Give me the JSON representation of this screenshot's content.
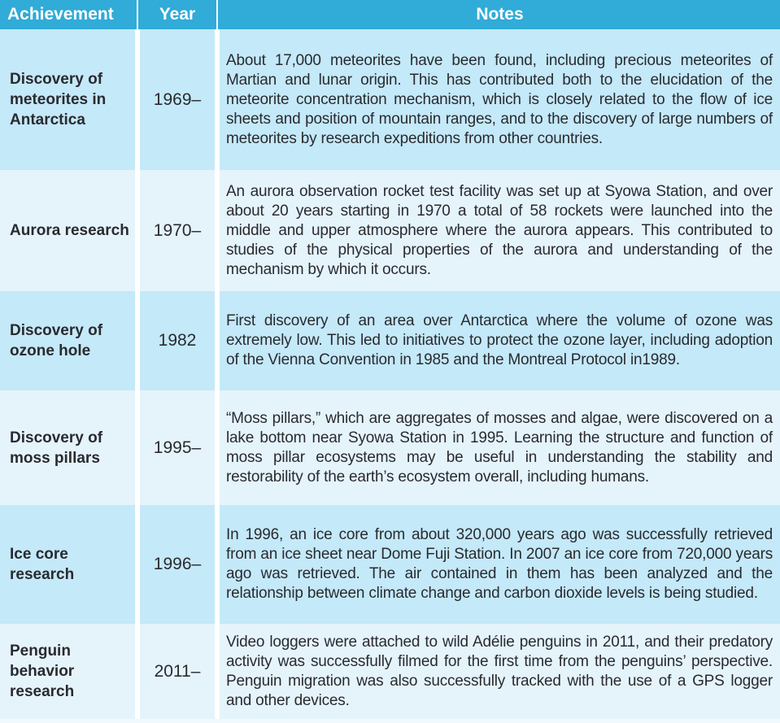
{
  "theme": {
    "header_bg": "#31abd7",
    "header_text": "#ffffff",
    "row_dark": "#c4e9f8",
    "row_light": "#e5f4fb",
    "separator": "#ffffff",
    "text": "#2a2a31"
  },
  "table": {
    "columns": [
      "Achievement",
      "Year",
      "Notes"
    ],
    "rows": [
      {
        "achievement": "Discovery of meteorites in Antarctica",
        "year": "1969–",
        "notes": "About 17,000 meteorites have been found, including precious meteorites of Martian and lunar origin. This has contributed both to the elucidation of the meteorite concentration mechanism, which is closely related to the flow of ice sheets and position of mountain ranges, and to the discovery of large numbers of meteorites by research expeditions from other countries."
      },
      {
        "achievement": "Aurora research",
        "year": "1970–",
        "notes": "An aurora observation rocket test facility was set up at Syowa Station, and over about 20 years starting in 1970 a total of 58 rockets were launched into the middle and upper atmosphere where the aurora appears. This contributed to studies of the physical properties of the aurora and understanding of the mechanism by which it occurs."
      },
      {
        "achievement": "Discovery of ozone hole",
        "year": "1982",
        "notes": "First discovery of an area over Antarctica where the volume of ozone was extremely low. This led to initiatives to protect the ozone layer, including adoption of the Vienna Convention in 1985 and the Montreal Protocol in1989."
      },
      {
        "achievement": "Discovery of moss pillars",
        "year": "1995–",
        "notes": "“Moss pillars,” which are aggregates of mosses and algae, were discovered on a lake bottom near Syowa Station in 1995. Learning the structure and function of moss pillar ecosystems may be useful in understanding the stability and restorability of the earth’s ecosystem overall, including humans."
      },
      {
        "achievement": "Ice core research",
        "year": "1996–",
        "notes": "In 1996, an ice core from about 320,000 years ago was successfully retrieved from an ice sheet near Dome Fuji Station. In 2007 an ice core from 720,000 years ago was retrieved. The air contained in them has been analyzed and the relationship between climate change and carbon dioxide levels is being studied."
      },
      {
        "achievement": "Penguin behavior research",
        "year": "2011–",
        "notes": "Video loggers were attached to wild Adélie penguins in 2011, and their predatory activity was successfully filmed for the first time from the penguins’ perspective. Penguin migration was also successfully tracked with the use of a GPS logger and other devices."
      }
    ]
  }
}
